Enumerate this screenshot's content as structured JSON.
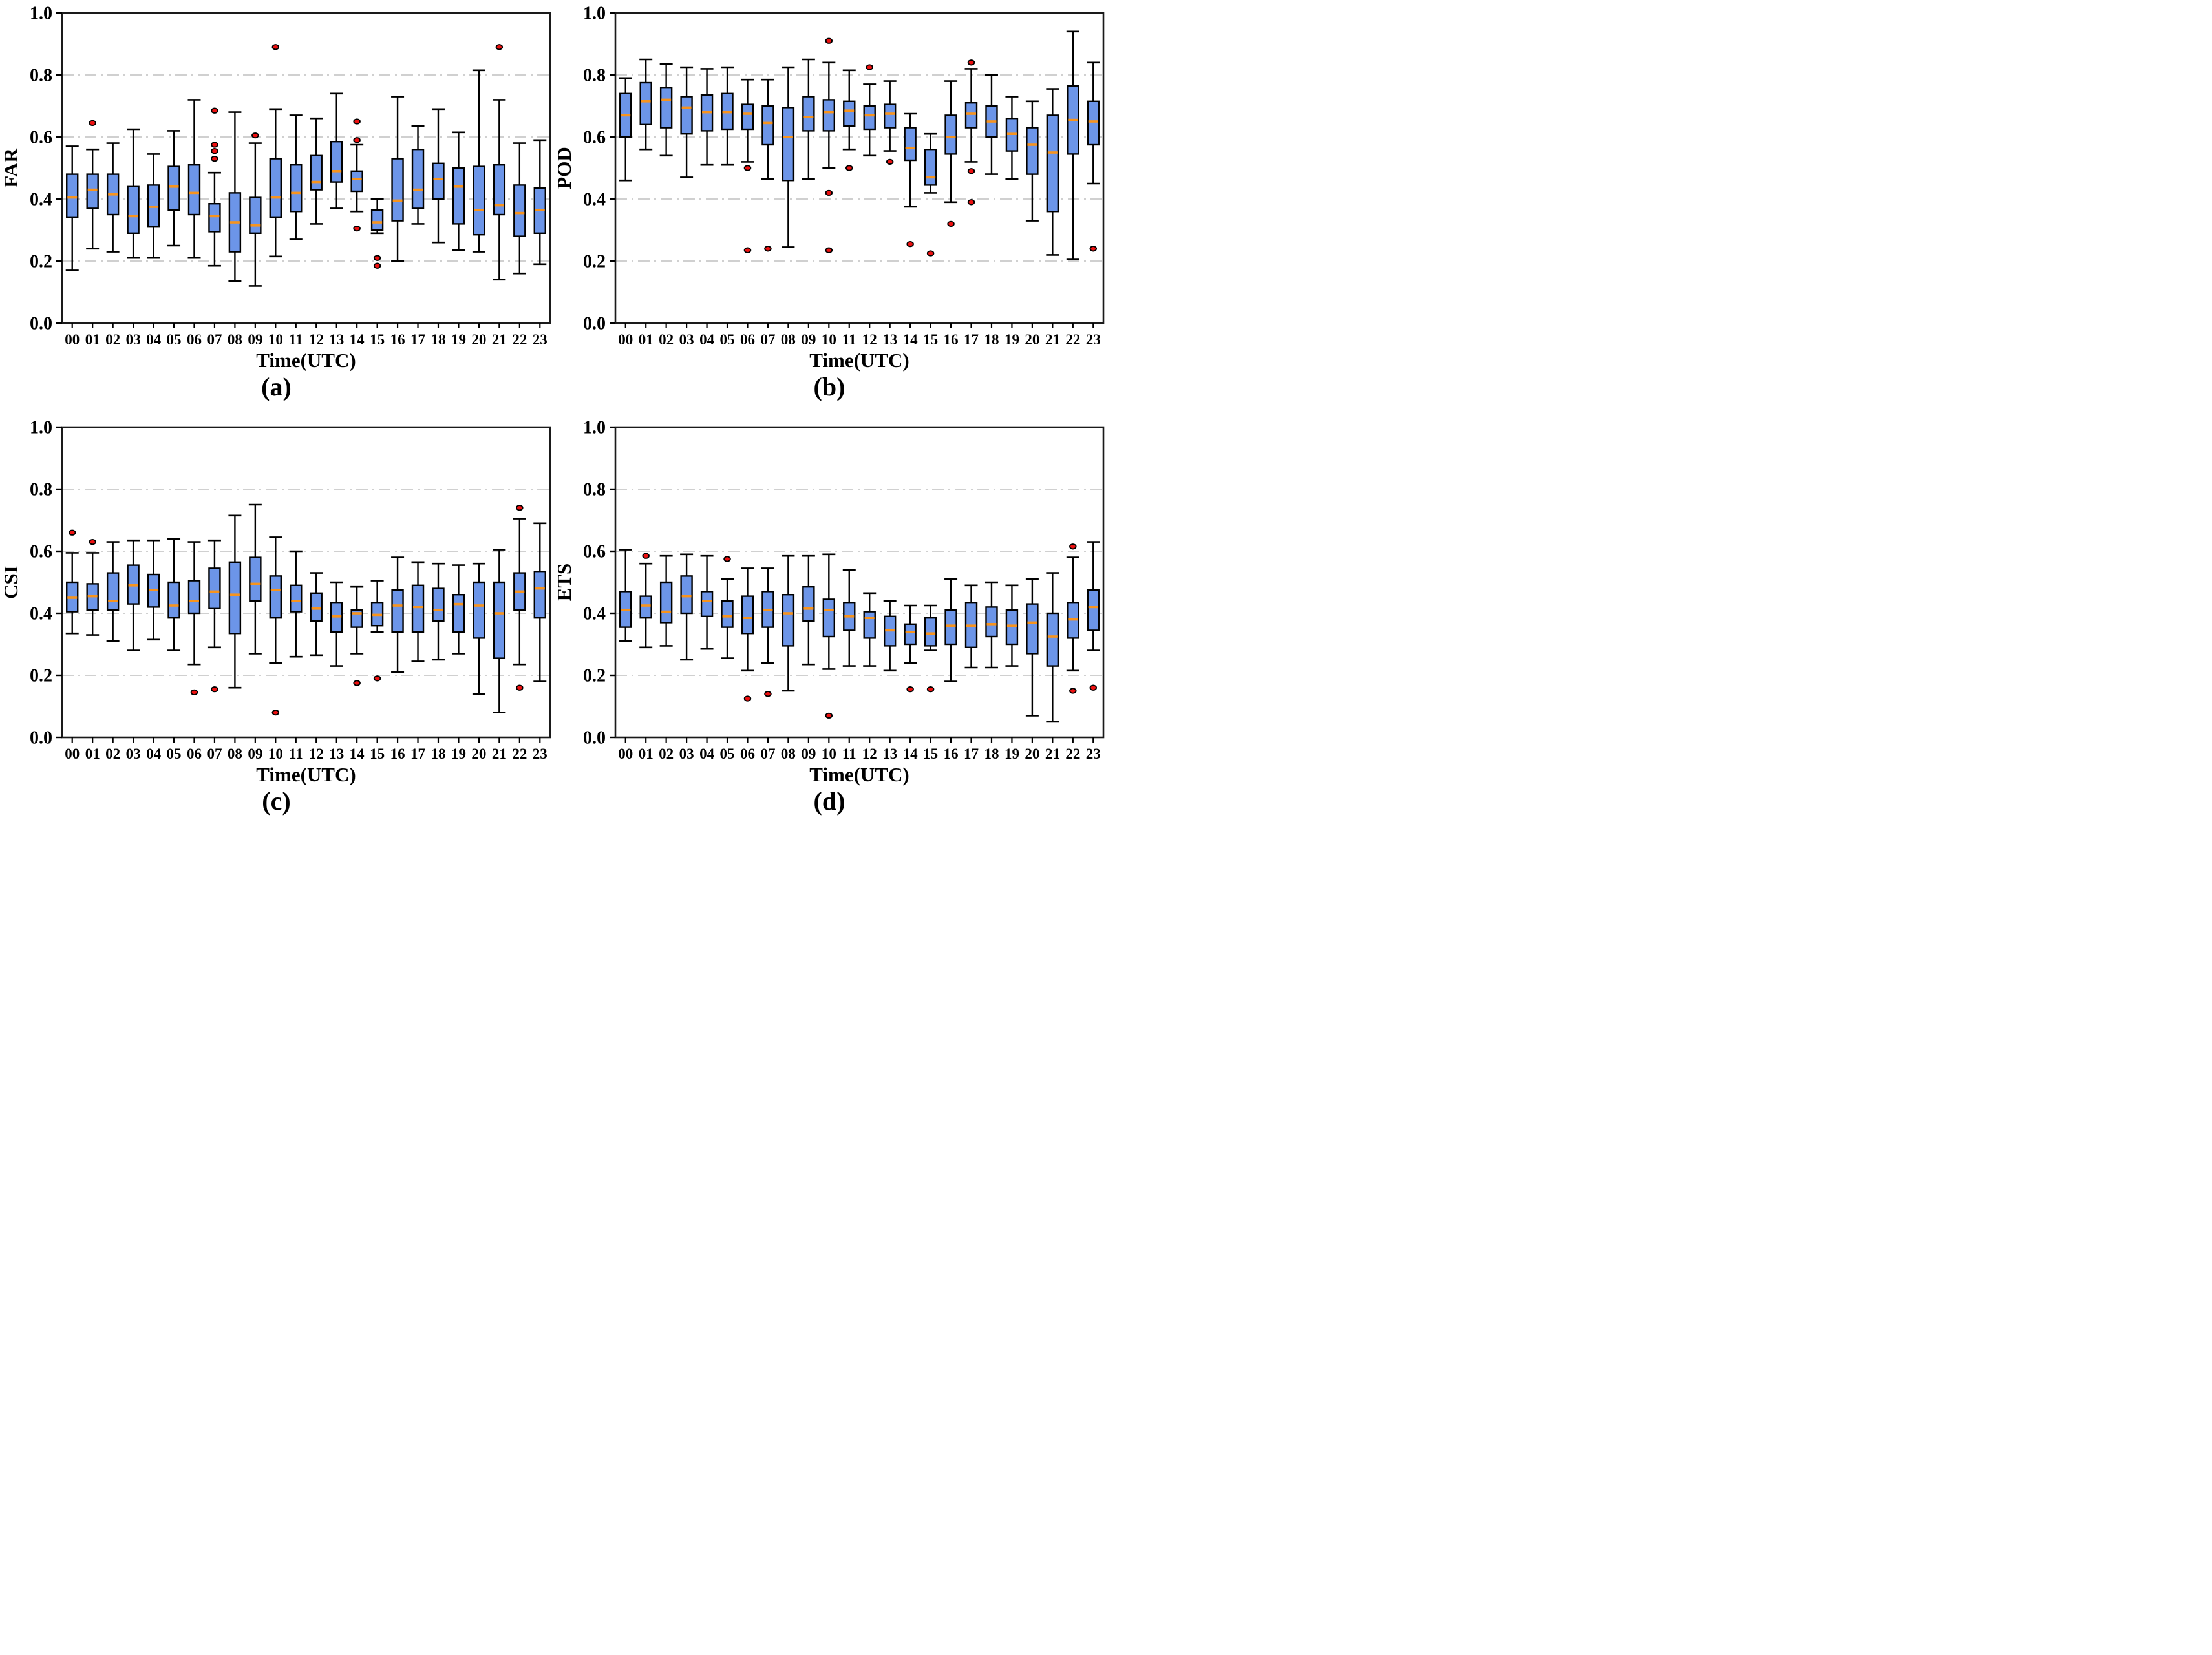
{
  "colors": {
    "box_fill": "#6C95E8",
    "box_edge": "#000000",
    "median": "#F8941D",
    "outlier_fill": "#EE1111",
    "outlier_edge": "#000000",
    "grid": "#b5b5b5",
    "frame": "#1a1a1a",
    "background": "#ffffff"
  },
  "box_format": [
    "whislo",
    "q1",
    "med",
    "q3",
    "whishi",
    "outliers"
  ],
  "chart_data": [
    {
      "type": "boxplot",
      "caption": "(a)",
      "ylabel": "FAR",
      "xlabel": "Time(UTC)",
      "ylim": [
        0.0,
        1.0
      ],
      "yticks": [
        0.0,
        0.2,
        0.4,
        0.6,
        0.8,
        1.0
      ],
      "ytick_labels": [
        "0.0",
        "0.2",
        "0.4",
        "0.6",
        "0.8",
        "1.0"
      ],
      "gridlines": [
        0.2,
        0.4,
        0.6,
        0.8
      ],
      "grid_style": "dash-dot",
      "legend": "none",
      "categories": [
        "00",
        "01",
        "02",
        "03",
        "04",
        "05",
        "06",
        "07",
        "08",
        "09",
        "10",
        "11",
        "12",
        "13",
        "14",
        "15",
        "16",
        "17",
        "18",
        "19",
        "20",
        "21",
        "22",
        "23"
      ],
      "boxes": [
        [
          0.17,
          0.34,
          0.405,
          0.48,
          0.57,
          []
        ],
        [
          0.24,
          0.37,
          0.43,
          0.48,
          0.56,
          [
            0.645
          ]
        ],
        [
          0.23,
          0.35,
          0.415,
          0.48,
          0.58,
          []
        ],
        [
          0.21,
          0.29,
          0.345,
          0.44,
          0.625,
          []
        ],
        [
          0.21,
          0.31,
          0.375,
          0.445,
          0.545,
          []
        ],
        [
          0.25,
          0.365,
          0.44,
          0.505,
          0.62,
          []
        ],
        [
          0.21,
          0.35,
          0.42,
          0.51,
          0.72,
          []
        ],
        [
          0.185,
          0.295,
          0.345,
          0.385,
          0.485,
          [
            0.685,
            0.575,
            0.555,
            0.53
          ]
        ],
        [
          0.135,
          0.23,
          0.325,
          0.42,
          0.68,
          []
        ],
        [
          0.12,
          0.29,
          0.315,
          0.405,
          0.58,
          [
            0.605
          ]
        ],
        [
          0.215,
          0.34,
          0.405,
          0.53,
          0.69,
          [
            0.89
          ]
        ],
        [
          0.27,
          0.36,
          0.42,
          0.51,
          0.67,
          []
        ],
        [
          0.32,
          0.43,
          0.455,
          0.54,
          0.66,
          []
        ],
        [
          0.37,
          0.455,
          0.49,
          0.585,
          0.74,
          []
        ],
        [
          0.36,
          0.425,
          0.465,
          0.49,
          0.575,
          [
            0.65,
            0.59,
            0.305
          ]
        ],
        [
          0.29,
          0.3,
          0.325,
          0.365,
          0.4,
          [
            0.21,
            0.185
          ]
        ],
        [
          0.2,
          0.33,
          0.395,
          0.53,
          0.73,
          []
        ],
        [
          0.32,
          0.37,
          0.43,
          0.56,
          0.635,
          []
        ],
        [
          0.26,
          0.4,
          0.465,
          0.515,
          0.69,
          []
        ],
        [
          0.235,
          0.32,
          0.44,
          0.5,
          0.615,
          []
        ],
        [
          0.23,
          0.285,
          0.365,
          0.505,
          0.815,
          []
        ],
        [
          0.14,
          0.35,
          0.38,
          0.51,
          0.72,
          [
            0.89
          ]
        ],
        [
          0.16,
          0.28,
          0.355,
          0.445,
          0.58,
          []
        ],
        [
          0.19,
          0.29,
          0.365,
          0.435,
          0.59,
          []
        ]
      ]
    },
    {
      "type": "boxplot",
      "caption": "(b)",
      "ylabel": "POD",
      "xlabel": "Time(UTC)",
      "ylim": [
        0.0,
        1.0
      ],
      "yticks": [
        0.0,
        0.2,
        0.4,
        0.6,
        0.8,
        1.0
      ],
      "ytick_labels": [
        "0.0",
        "0.2",
        "0.4",
        "0.6",
        "0.8",
        "1.0"
      ],
      "gridlines": [
        0.2,
        0.4,
        0.6,
        0.8
      ],
      "grid_style": "dash-dot",
      "legend": "none",
      "categories": [
        "00",
        "01",
        "02",
        "03",
        "04",
        "05",
        "06",
        "07",
        "08",
        "09",
        "10",
        "11",
        "12",
        "13",
        "14",
        "15",
        "16",
        "17",
        "18",
        "19",
        "20",
        "21",
        "22",
        "23"
      ],
      "boxes": [
        [
          0.46,
          0.6,
          0.67,
          0.74,
          0.79,
          []
        ],
        [
          0.56,
          0.64,
          0.715,
          0.775,
          0.85,
          []
        ],
        [
          0.54,
          0.63,
          0.72,
          0.76,
          0.835,
          []
        ],
        [
          0.47,
          0.61,
          0.695,
          0.73,
          0.825,
          []
        ],
        [
          0.51,
          0.62,
          0.68,
          0.735,
          0.82,
          []
        ],
        [
          0.51,
          0.625,
          0.68,
          0.74,
          0.825,
          []
        ],
        [
          0.52,
          0.625,
          0.675,
          0.705,
          0.785,
          [
            0.5,
            0.235
          ]
        ],
        [
          0.465,
          0.575,
          0.645,
          0.7,
          0.785,
          [
            0.24
          ]
        ],
        [
          0.245,
          0.46,
          0.6,
          0.695,
          0.825,
          []
        ],
        [
          0.465,
          0.62,
          0.665,
          0.73,
          0.85,
          []
        ],
        [
          0.5,
          0.62,
          0.68,
          0.72,
          0.84,
          [
            0.91,
            0.42,
            0.235
          ]
        ],
        [
          0.56,
          0.635,
          0.685,
          0.715,
          0.815,
          [
            0.5
          ]
        ],
        [
          0.54,
          0.625,
          0.67,
          0.7,
          0.77,
          [
            0.825
          ]
        ],
        [
          0.555,
          0.63,
          0.675,
          0.705,
          0.78,
          [
            0.52
          ]
        ],
        [
          0.375,
          0.525,
          0.565,
          0.63,
          0.675,
          [
            0.255
          ]
        ],
        [
          0.42,
          0.445,
          0.47,
          0.56,
          0.61,
          [
            0.225
          ]
        ],
        [
          0.39,
          0.545,
          0.6,
          0.67,
          0.78,
          [
            0.32
          ]
        ],
        [
          0.52,
          0.63,
          0.675,
          0.71,
          0.82,
          [
            0.84,
            0.49,
            0.39
          ]
        ],
        [
          0.48,
          0.6,
          0.65,
          0.7,
          0.8,
          []
        ],
        [
          0.465,
          0.555,
          0.61,
          0.66,
          0.73,
          []
        ],
        [
          0.33,
          0.48,
          0.575,
          0.63,
          0.715,
          []
        ],
        [
          0.22,
          0.36,
          0.55,
          0.67,
          0.755,
          []
        ],
        [
          0.205,
          0.545,
          0.655,
          0.765,
          0.94,
          []
        ],
        [
          0.45,
          0.575,
          0.65,
          0.715,
          0.84,
          [
            0.24
          ]
        ]
      ]
    },
    {
      "type": "boxplot",
      "caption": "(c)",
      "ylabel": "CSI",
      "xlabel": "Time(UTC)",
      "ylim": [
        0.0,
        1.0
      ],
      "yticks": [
        0.0,
        0.2,
        0.4,
        0.6,
        0.8,
        1.0
      ],
      "ytick_labels": [
        "0.0",
        "0.2",
        "0.4",
        "0.6",
        "0.8",
        "1.0"
      ],
      "gridlines": [
        0.2,
        0.4,
        0.6,
        0.8
      ],
      "grid_style": "dash-dot",
      "legend": "none",
      "categories": [
        "00",
        "01",
        "02",
        "03",
        "04",
        "05",
        "06",
        "07",
        "08",
        "09",
        "10",
        "11",
        "12",
        "13",
        "14",
        "15",
        "16",
        "17",
        "18",
        "19",
        "20",
        "21",
        "22",
        "23"
      ],
      "boxes": [
        [
          0.335,
          0.405,
          0.45,
          0.5,
          0.595,
          [
            0.66
          ]
        ],
        [
          0.33,
          0.41,
          0.455,
          0.495,
          0.595,
          [
            0.63
          ]
        ],
        [
          0.31,
          0.41,
          0.44,
          0.53,
          0.63,
          []
        ],
        [
          0.28,
          0.43,
          0.49,
          0.555,
          0.635,
          []
        ],
        [
          0.315,
          0.42,
          0.475,
          0.525,
          0.635,
          []
        ],
        [
          0.28,
          0.385,
          0.425,
          0.5,
          0.64,
          []
        ],
        [
          0.235,
          0.4,
          0.44,
          0.505,
          0.63,
          [
            0.145
          ]
        ],
        [
          0.29,
          0.415,
          0.47,
          0.545,
          0.635,
          [
            0.155
          ]
        ],
        [
          0.16,
          0.335,
          0.46,
          0.565,
          0.715,
          []
        ],
        [
          0.27,
          0.44,
          0.495,
          0.58,
          0.75,
          []
        ],
        [
          0.24,
          0.385,
          0.475,
          0.52,
          0.645,
          [
            0.08
          ]
        ],
        [
          0.26,
          0.405,
          0.44,
          0.49,
          0.6,
          []
        ],
        [
          0.265,
          0.375,
          0.415,
          0.465,
          0.53,
          []
        ],
        [
          0.23,
          0.34,
          0.39,
          0.435,
          0.5,
          []
        ],
        [
          0.27,
          0.355,
          0.4,
          0.41,
          0.485,
          [
            0.175
          ]
        ],
        [
          0.34,
          0.36,
          0.395,
          0.435,
          0.505,
          [
            0.19
          ]
        ],
        [
          0.21,
          0.34,
          0.425,
          0.475,
          0.58,
          []
        ],
        [
          0.245,
          0.34,
          0.42,
          0.49,
          0.565,
          []
        ],
        [
          0.25,
          0.375,
          0.41,
          0.48,
          0.56,
          []
        ],
        [
          0.27,
          0.34,
          0.43,
          0.46,
          0.555,
          []
        ],
        [
          0.14,
          0.32,
          0.425,
          0.5,
          0.56,
          []
        ],
        [
          0.08,
          0.255,
          0.4,
          0.5,
          0.605,
          []
        ],
        [
          0.235,
          0.41,
          0.47,
          0.53,
          0.705,
          [
            0.74,
            0.16
          ]
        ],
        [
          0.18,
          0.385,
          0.48,
          0.535,
          0.69,
          []
        ]
      ]
    },
    {
      "type": "boxplot",
      "caption": "(d)",
      "ylabel": "ETS",
      "xlabel": "Time(UTC)",
      "ylim": [
        0.0,
        1.0
      ],
      "yticks": [
        0.0,
        0.2,
        0.4,
        0.6,
        0.8,
        1.0
      ],
      "ytick_labels": [
        "0.0",
        "0.2",
        "0.4",
        "0.6",
        "0.8",
        "1.0"
      ],
      "gridlines": [
        0.2,
        0.4,
        0.6,
        0.8
      ],
      "grid_style": "dash-dot",
      "legend": "none",
      "categories": [
        "00",
        "01",
        "02",
        "03",
        "04",
        "05",
        "06",
        "07",
        "08",
        "09",
        "10",
        "11",
        "12",
        "13",
        "14",
        "15",
        "16",
        "17",
        "18",
        "19",
        "20",
        "21",
        "22",
        "23"
      ],
      "boxes": [
        [
          0.31,
          0.355,
          0.41,
          0.47,
          0.605,
          []
        ],
        [
          0.29,
          0.385,
          0.425,
          0.455,
          0.56,
          [
            0.585
          ]
        ],
        [
          0.295,
          0.37,
          0.405,
          0.5,
          0.585,
          []
        ],
        [
          0.25,
          0.4,
          0.455,
          0.52,
          0.59,
          []
        ],
        [
          0.285,
          0.39,
          0.44,
          0.47,
          0.585,
          []
        ],
        [
          0.255,
          0.355,
          0.39,
          0.44,
          0.51,
          [
            0.575
          ]
        ],
        [
          0.215,
          0.335,
          0.385,
          0.455,
          0.545,
          [
            0.125
          ]
        ],
        [
          0.24,
          0.355,
          0.41,
          0.47,
          0.545,
          [
            0.14
          ]
        ],
        [
          0.15,
          0.295,
          0.4,
          0.46,
          0.585,
          []
        ],
        [
          0.235,
          0.375,
          0.415,
          0.485,
          0.585,
          []
        ],
        [
          0.22,
          0.325,
          0.41,
          0.445,
          0.59,
          [
            0.07
          ]
        ],
        [
          0.23,
          0.345,
          0.39,
          0.435,
          0.54,
          []
        ],
        [
          0.23,
          0.32,
          0.385,
          0.405,
          0.465,
          []
        ],
        [
          0.215,
          0.295,
          0.345,
          0.39,
          0.44,
          []
        ],
        [
          0.24,
          0.3,
          0.34,
          0.365,
          0.425,
          [
            0.155
          ]
        ],
        [
          0.28,
          0.295,
          0.335,
          0.385,
          0.425,
          [
            0.155
          ]
        ],
        [
          0.18,
          0.3,
          0.36,
          0.41,
          0.51,
          []
        ],
        [
          0.225,
          0.29,
          0.36,
          0.435,
          0.49,
          []
        ],
        [
          0.225,
          0.325,
          0.365,
          0.42,
          0.5,
          []
        ],
        [
          0.23,
          0.3,
          0.36,
          0.41,
          0.49,
          []
        ],
        [
          0.07,
          0.27,
          0.37,
          0.43,
          0.51,
          []
        ],
        [
          0.05,
          0.23,
          0.325,
          0.4,
          0.53,
          []
        ],
        [
          0.215,
          0.32,
          0.38,
          0.435,
          0.58,
          [
            0.615,
            0.15
          ]
        ],
        [
          0.28,
          0.345,
          0.42,
          0.475,
          0.63,
          [
            0.16
          ]
        ]
      ]
    }
  ]
}
